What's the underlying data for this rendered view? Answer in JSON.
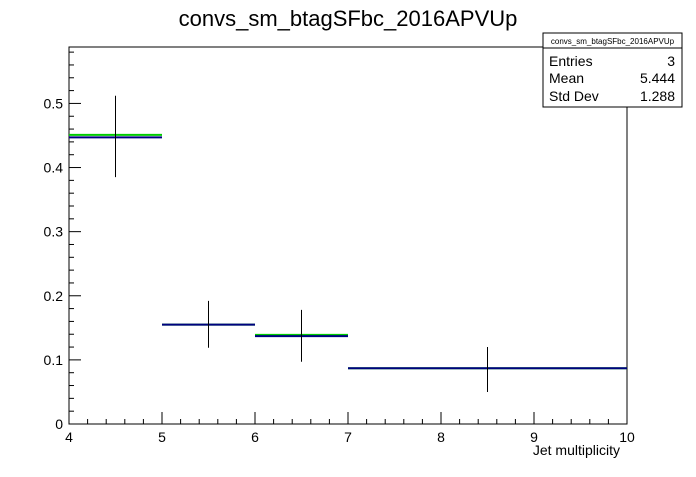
{
  "chart_data": {
    "type": "histogram",
    "title": "convs_sm_btagSFbc_2016APVUp",
    "xlabel": "Jet multiplicity",
    "ylabel": "",
    "xlim": [
      4,
      10
    ],
    "ylim": [
      0,
      0.588
    ],
    "x_ticks": [
      "4",
      "5",
      "6",
      "7",
      "8",
      "9",
      "10"
    ],
    "y_ticks": [
      "0",
      "0.1",
      "0.2",
      "0.3",
      "0.4",
      "0.5"
    ],
    "bins": [
      {
        "x_low": 4,
        "x_high": 5,
        "x_center": 4.5,
        "value": 0.447,
        "error_low": 0.385,
        "error_high": 0.512
      },
      {
        "x_low": 5,
        "x_high": 6,
        "x_center": 5.5,
        "value": 0.155,
        "error_low": 0.119,
        "error_high": 0.192
      },
      {
        "x_low": 6,
        "x_high": 7,
        "x_center": 6.5,
        "value": 0.137,
        "error_low": 0.097,
        "error_high": 0.178
      },
      {
        "x_low": 7,
        "x_high": 10,
        "x_center": 8.5,
        "value": 0.087,
        "error_low": 0.05,
        "error_high": 0.12
      }
    ],
    "series": [
      {
        "color": "#000080",
        "values": [
          0.447,
          0.155,
          0.137,
          0.087
        ]
      },
      {
        "color": "#00cc00",
        "values": [
          0.451,
          0.155,
          0.139,
          0.087
        ]
      }
    ],
    "stats_box": {
      "title": "convs_sm_btagSFbc_2016APVUp",
      "rows": [
        {
          "label": "Entries",
          "value": "3"
        },
        {
          "label": "Mean",
          "value": "5.444"
        },
        {
          "label": "Std Dev",
          "value": "1.288"
        }
      ]
    },
    "legend_position": "top-right",
    "grid": false
  }
}
